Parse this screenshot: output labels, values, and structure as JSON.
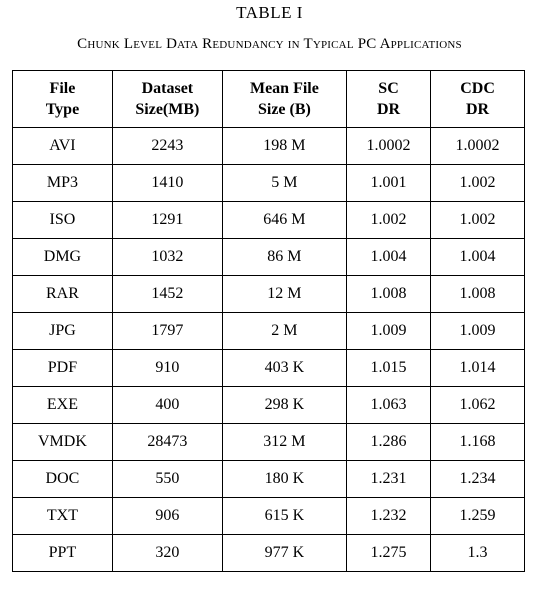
{
  "table_number": "TABLE I",
  "caption": "Chunk Level Data Redundancy in Typical PC Applications",
  "columns": [
    [
      "File",
      "Type"
    ],
    [
      "Dataset",
      "Size(MB)"
    ],
    [
      "Mean File",
      "Size (B)"
    ],
    [
      "SC",
      "DR"
    ],
    [
      "CDC",
      "DR"
    ]
  ],
  "rows": [
    [
      "AVI",
      "2243",
      "198 M",
      "1.0002",
      "1.0002"
    ],
    [
      "MP3",
      "1410",
      "5 M",
      "1.001",
      "1.002"
    ],
    [
      "ISO",
      "1291",
      "646 M",
      "1.002",
      "1.002"
    ],
    [
      "DMG",
      "1032",
      "86 M",
      "1.004",
      "1.004"
    ],
    [
      "RAR",
      "1452",
      "12 M",
      "1.008",
      "1.008"
    ],
    [
      "JPG",
      "1797",
      "2 M",
      "1.009",
      "1.009"
    ],
    [
      "PDF",
      "910",
      "403 K",
      "1.015",
      "1.014"
    ],
    [
      "EXE",
      "400",
      "298 K",
      "1.063",
      "1.062"
    ],
    [
      "VMDK",
      "28473",
      "312 M",
      "1.286",
      "1.168"
    ],
    [
      "DOC",
      "550",
      "180 K",
      "1.231",
      "1.234"
    ],
    [
      "TXT",
      "906",
      "615 K",
      "1.232",
      "1.259"
    ],
    [
      "PPT",
      "320",
      "977 K",
      "1.275",
      "1.3"
    ]
  ]
}
